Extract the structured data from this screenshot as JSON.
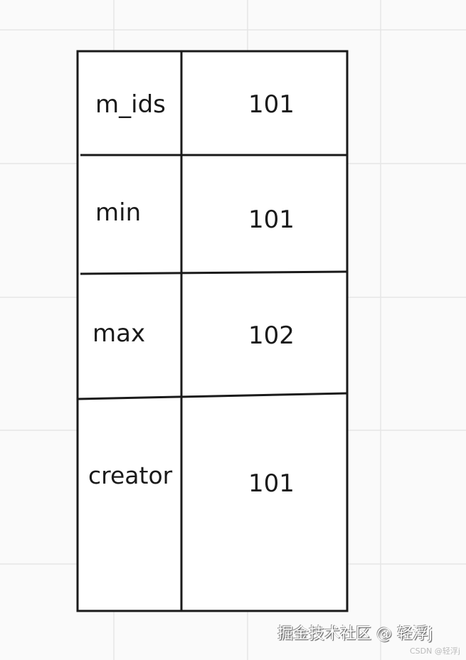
{
  "table": {
    "rows": [
      {
        "label": "m_ids",
        "value": "101"
      },
      {
        "label": "min",
        "value": "101"
      },
      {
        "label": "max",
        "value": "102"
      },
      {
        "label": "creator",
        "value": "101"
      }
    ]
  },
  "watermark": {
    "main": "掘金技术社区 @ 轻浮j",
    "sub": "CSDN @轻浮j"
  },
  "colors": {
    "line": "#1a1a1a",
    "grid": "#e8e8e8"
  }
}
